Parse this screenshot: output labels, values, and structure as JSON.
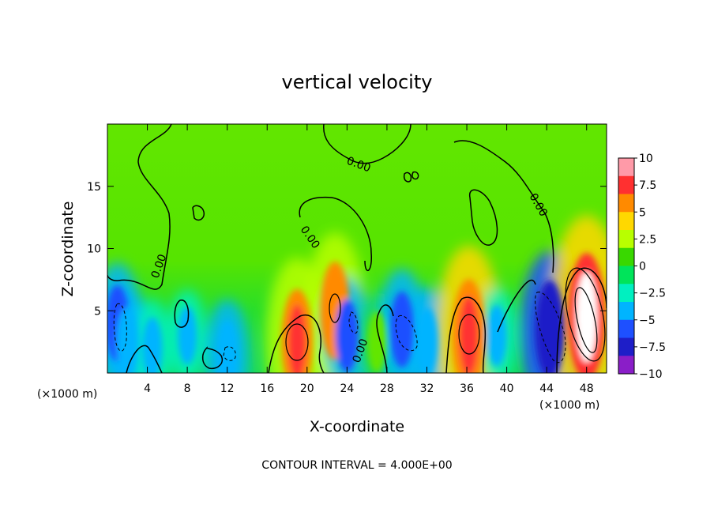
{
  "chart_data": {
    "type": "heatmap",
    "title": "vertical velocity",
    "xlabel": "X-coordinate",
    "ylabel": "Z-coordinate",
    "x_units_left": "(×1000 m)",
    "x_units_right": "(×1000 m)",
    "caption": "CONTOUR INTERVAL = 4.000E+00",
    "xlim": [
      0,
      50
    ],
    "ylim": [
      0,
      20
    ],
    "x_ticks": [
      4,
      8,
      12,
      16,
      20,
      24,
      28,
      32,
      36,
      40,
      44,
      48
    ],
    "y_ticks": [
      5,
      10,
      15
    ],
    "colorbar": {
      "min": -10,
      "max": 10,
      "ticks": [
        10,
        7.5,
        5,
        2.5,
        0,
        -2.5,
        -5,
        -7.5,
        -10
      ],
      "tick_labels": [
        "10",
        "7.5",
        "5",
        "2.5",
        "0",
        "−2.5",
        "−5",
        "−7.5",
        "−10"
      ],
      "colors": [
        "#ff9aa8",
        "#ff3030",
        "#ff8a00",
        "#ffd800",
        "#b8ff00",
        "#39d800",
        "#00e45a",
        "#00f0c0",
        "#00b4ff",
        "#1e50ff",
        "#1e1ec8",
        "#8a1ec8"
      ]
    },
    "contour_labels": [
      "0.00",
      "0.00",
      "0.00",
      "0.00",
      "0.00"
    ],
    "cells": [
      {
        "x": 1.0,
        "z": 4.0,
        "value": -4.0
      },
      {
        "x": 2.0,
        "z": 2.5,
        "value": -3.0
      },
      {
        "x": 4.5,
        "z": 2.0,
        "value": -2.0
      },
      {
        "x": 8.0,
        "z": 3.0,
        "value": -1.5
      },
      {
        "x": 12.0,
        "z": 1.5,
        "value": -3.0
      },
      {
        "x": 19.0,
        "z": 2.5,
        "value": 8.0
      },
      {
        "x": 22.8,
        "z": 5.0,
        "value": 7.0
      },
      {
        "x": 24.0,
        "z": 3.0,
        "value": -3.5
      },
      {
        "x": 27.0,
        "z": 2.5,
        "value": 2.0
      },
      {
        "x": 29.5,
        "z": 3.5,
        "value": -4.0
      },
      {
        "x": 32.0,
        "z": 2.5,
        "value": -3.0
      },
      {
        "x": 36.2,
        "z": 3.0,
        "value": 9.0
      },
      {
        "x": 39.0,
        "z": 3.0,
        "value": -2.0
      },
      {
        "x": 44.3,
        "z": 3.5,
        "value": -7.0
      },
      {
        "x": 48.0,
        "z": 4.5,
        "value": 11.0
      }
    ]
  }
}
